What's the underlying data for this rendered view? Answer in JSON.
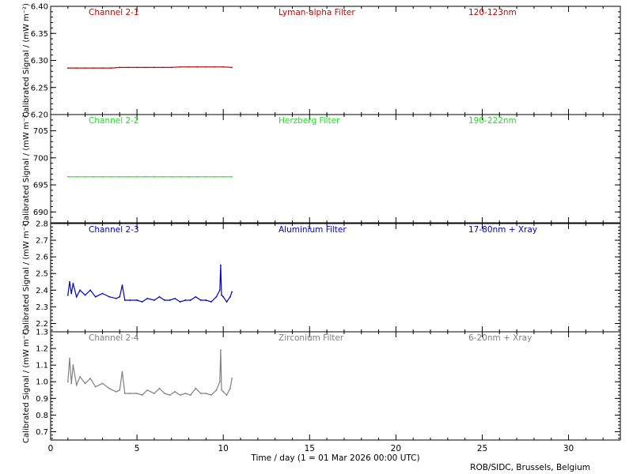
{
  "footer": {
    "xlabel": "Time / day (1 = 01 Mar 2026 00:00 UTC)",
    "credit": "ROB/SIDC, Brussels, Belgium"
  },
  "chart_data": [
    {
      "type": "line",
      "channel": "Channel 2-1",
      "filter": "Lyman-alpha Filter",
      "band": "120-123nm",
      "color": "#cc0000",
      "ylabel": "Calibrated Signal  / (mW m⁻²)",
      "xlabel": "Time / day (1 = 01 Mar 2026 00:00 UTC)",
      "xlim": [
        0,
        33
      ],
      "ylim": [
        6.2,
        6.4
      ],
      "yticks": [
        6.2,
        6.25,
        6.3,
        6.35,
        6.4
      ],
      "ytick_labels": [
        "6.20",
        "6.25",
        "6.30",
        "6.35",
        "6.40"
      ],
      "xticks": [
        0,
        5,
        10,
        15,
        20,
        25,
        30
      ],
      "x": [
        1.0,
        1.5,
        2.0,
        2.5,
        3.0,
        3.5,
        4.0,
        4.5,
        5.0,
        5.5,
        6.0,
        6.5,
        7.0,
        7.5,
        8.0,
        8.5,
        9.0,
        9.5,
        10.0,
        10.5
      ],
      "y": [
        6.286,
        6.286,
        6.286,
        6.286,
        6.286,
        6.286,
        6.287,
        6.287,
        6.287,
        6.287,
        6.287,
        6.287,
        6.287,
        6.288,
        6.288,
        6.288,
        6.288,
        6.288,
        6.288,
        6.287
      ]
    },
    {
      "type": "line",
      "channel": "Channel 2-2",
      "filter": "Herzberg Filter",
      "band": "190-222nm",
      "color": "#22dd22",
      "ylabel": "Calibrated Signal  / (mW m⁻²)",
      "xlim": [
        0,
        33
      ],
      "ylim": [
        688,
        708
      ],
      "yticks": [
        690,
        695,
        700,
        705
      ],
      "ytick_labels": [
        "690",
        "695",
        "700",
        "705"
      ],
      "xticks": [
        0,
        5,
        10,
        15,
        20,
        25,
        30
      ],
      "x": [
        1.0,
        1.5,
        2.0,
        2.5,
        3.0,
        3.5,
        4.0,
        4.5,
        5.0,
        5.5,
        6.0,
        6.5,
        7.0,
        7.5,
        8.0,
        8.5,
        9.0,
        9.5,
        10.0,
        10.5
      ],
      "y": [
        696.5,
        696.5,
        696.5,
        696.5,
        696.5,
        696.5,
        696.5,
        696.5,
        696.5,
        696.5,
        696.5,
        696.5,
        696.5,
        696.5,
        696.5,
        696.5,
        696.5,
        696.5,
        696.5,
        696.5
      ]
    },
    {
      "type": "line",
      "channel": "Channel 2-3",
      "filter": "Aluminium Filter",
      "band": "17-80nm + Xray",
      "color": "#0000cc",
      "ylabel": "Calibrated Signal  / (mW m⁻²)",
      "xlim": [
        0,
        33
      ],
      "ylim": [
        2.15,
        2.8
      ],
      "yticks": [
        2.2,
        2.3,
        2.4,
        2.5,
        2.6,
        2.7,
        2.8
      ],
      "ytick_labels": [
        "2.2",
        "2.3",
        "2.4",
        "2.5",
        "2.6",
        "2.7",
        "2.8"
      ],
      "xticks": [
        0,
        5,
        10,
        15,
        20,
        25,
        30
      ],
      "x": [
        1.0,
        1.1,
        1.2,
        1.3,
        1.5,
        1.7,
        2.0,
        2.3,
        2.6,
        3.0,
        3.4,
        3.8,
        4.0,
        4.15,
        4.3,
        4.6,
        5.0,
        5.3,
        5.6,
        6.0,
        6.3,
        6.6,
        6.9,
        7.2,
        7.5,
        7.8,
        8.1,
        8.4,
        8.7,
        9.0,
        9.3,
        9.6,
        9.8,
        9.85,
        9.9,
        10.0,
        10.2,
        10.4,
        10.5
      ],
      "y": [
        2.37,
        2.45,
        2.38,
        2.44,
        2.36,
        2.4,
        2.37,
        2.4,
        2.36,
        2.38,
        2.36,
        2.35,
        2.36,
        2.43,
        2.34,
        2.34,
        2.34,
        2.33,
        2.35,
        2.34,
        2.36,
        2.34,
        2.34,
        2.35,
        2.33,
        2.34,
        2.34,
        2.36,
        2.34,
        2.34,
        2.33,
        2.36,
        2.4,
        2.55,
        2.37,
        2.36,
        2.33,
        2.36,
        2.39
      ]
    },
    {
      "type": "line",
      "channel": "Channel 2-4",
      "filter": "Zirconium Filter",
      "band": "6-20nm + Xray",
      "color": "#808080",
      "ylabel": "Calibrated Signal  / (mW m⁻²)",
      "xlim": [
        0,
        33
      ],
      "ylim": [
        0.65,
        1.3
      ],
      "yticks": [
        0.7,
        0.8,
        0.9,
        1.0,
        1.1,
        1.2,
        1.3
      ],
      "ytick_labels": [
        "0.7",
        "0.8",
        "0.9",
        "1.0",
        "1.1",
        "1.2",
        "1.3"
      ],
      "xticks": [
        0,
        5,
        10,
        15,
        20,
        25,
        30
      ],
      "xtick_labels": [
        "0",
        "5",
        "10",
        "15",
        "20",
        "25",
        "30"
      ],
      "x": [
        1.0,
        1.1,
        1.2,
        1.3,
        1.5,
        1.7,
        2.0,
        2.3,
        2.6,
        3.0,
        3.4,
        3.8,
        4.0,
        4.15,
        4.3,
        4.6,
        5.0,
        5.3,
        5.6,
        6.0,
        6.3,
        6.6,
        6.9,
        7.2,
        7.5,
        7.8,
        8.1,
        8.4,
        8.7,
        9.0,
        9.3,
        9.6,
        9.8,
        9.85,
        9.9,
        10.0,
        10.2,
        10.4,
        10.5
      ],
      "y": [
        1.0,
        1.14,
        0.99,
        1.1,
        0.98,
        1.03,
        0.99,
        1.02,
        0.97,
        0.99,
        0.96,
        0.94,
        0.95,
        1.06,
        0.93,
        0.93,
        0.93,
        0.92,
        0.95,
        0.93,
        0.96,
        0.93,
        0.92,
        0.94,
        0.92,
        0.93,
        0.92,
        0.96,
        0.93,
        0.93,
        0.92,
        0.95,
        1.0,
        1.19,
        0.95,
        0.94,
        0.92,
        0.96,
        1.02
      ]
    }
  ]
}
